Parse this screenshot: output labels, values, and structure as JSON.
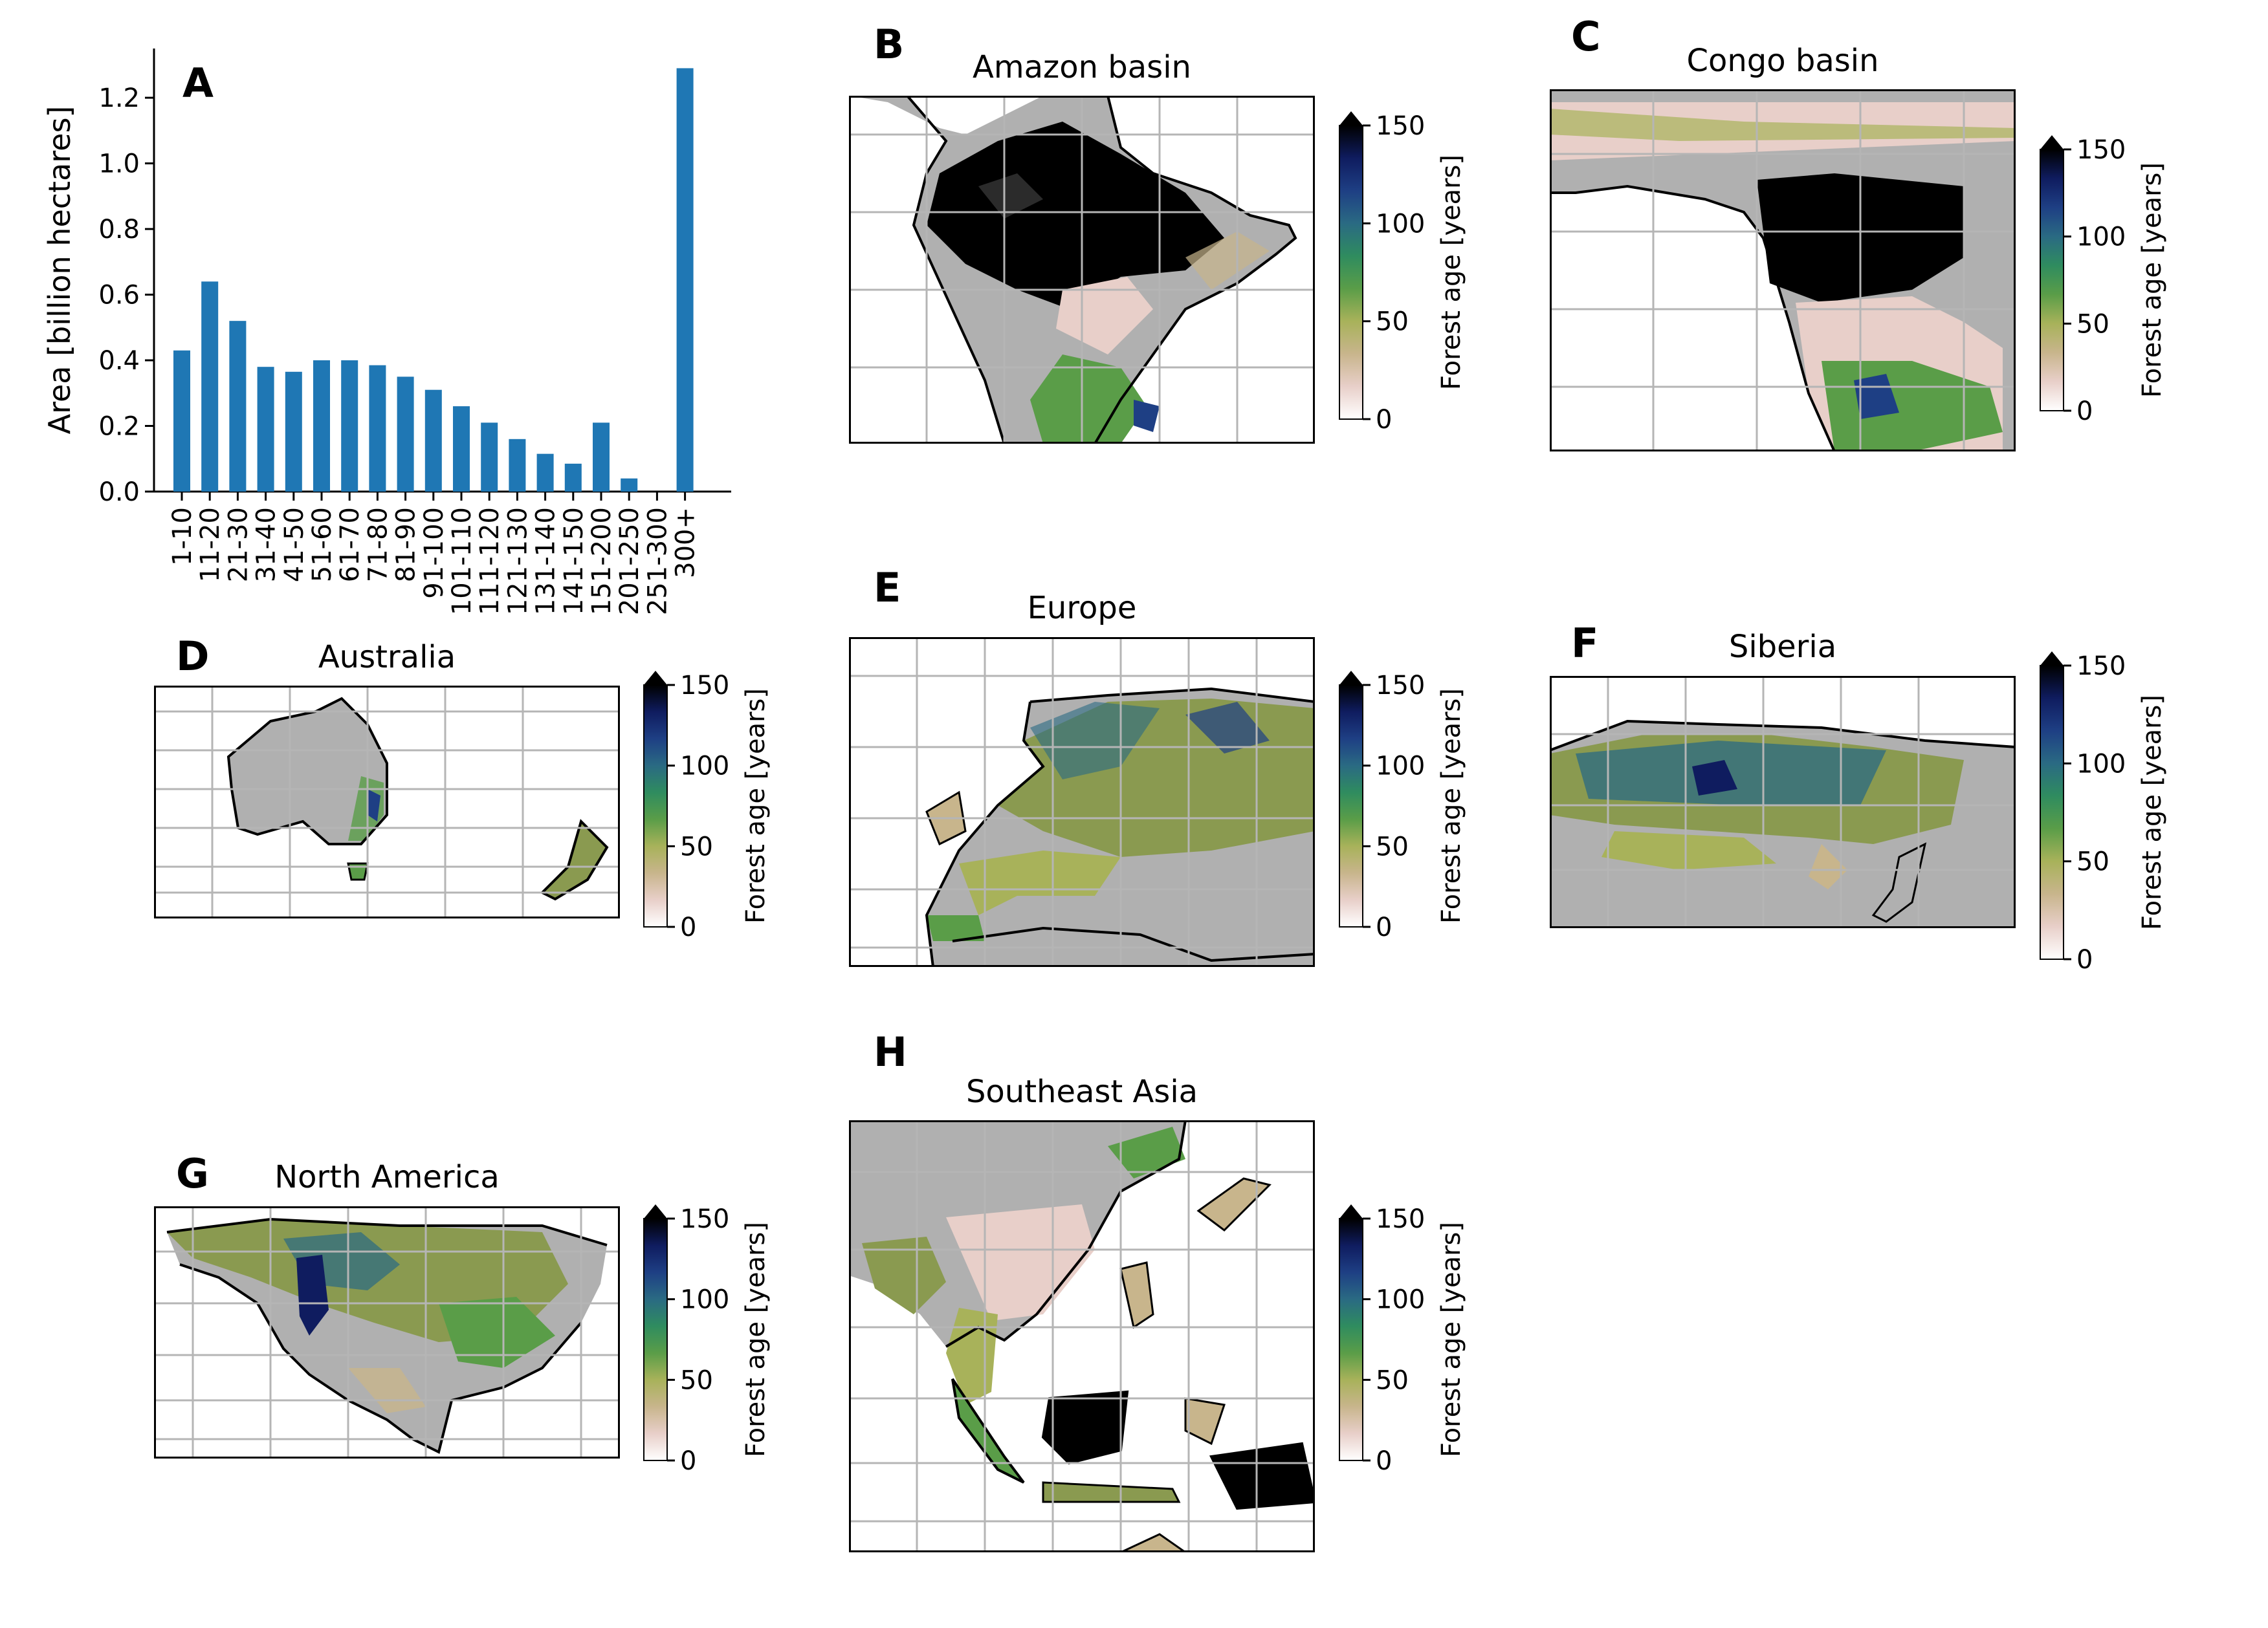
{
  "panels": {
    "A": {
      "letter": "A"
    },
    "B": {
      "letter": "B",
      "title": "Amazon basin"
    },
    "C": {
      "letter": "C",
      "title": "Congo basin"
    },
    "D": {
      "letter": "D",
      "title": "Australia"
    },
    "E": {
      "letter": "E",
      "title": "Europe"
    },
    "F": {
      "letter": "F",
      "title": "Siberia"
    },
    "G": {
      "letter": "G",
      "title": "North America"
    },
    "H": {
      "letter": "H",
      "title": "Southeast Asia"
    }
  },
  "colorbar": {
    "label": "Forest age [years]",
    "ticks": [
      "0",
      "50",
      "100",
      "150"
    ],
    "extend": "max",
    "colors": [
      "#ffffff",
      "#e8cfc9",
      "#c8b58c",
      "#a8b25a",
      "#5a9d48",
      "#2f8c5f",
      "#2a6a83",
      "#1e3f84",
      "#0f1c5f",
      "#000000"
    ]
  },
  "map_colors": {
    "no_data": "#b0b0b0",
    "old_forest": "#000000",
    "grid": "#b5b5b5"
  },
  "chart_data": {
    "type": "bar",
    "title": "",
    "xlabel": "",
    "ylabel": "Area [billion hectares]",
    "categories": [
      "1-10",
      "11-20",
      "21-30",
      "31-40",
      "41-50",
      "51-60",
      "61-70",
      "71-80",
      "81-90",
      "91-100",
      "101-110",
      "111-120",
      "121-130",
      "131-140",
      "141-150",
      "151-200",
      "201-250",
      "251-300",
      "300+"
    ],
    "values": [
      0.43,
      0.64,
      0.52,
      0.38,
      0.365,
      0.4,
      0.4,
      0.385,
      0.35,
      0.31,
      0.26,
      0.21,
      0.16,
      0.115,
      0.085,
      0.21,
      0.04,
      0.0,
      1.29
    ],
    "ylim": [
      0,
      1.35
    ],
    "yticks": [
      0.0,
      0.2,
      0.4,
      0.6,
      0.8,
      1.0,
      1.2
    ],
    "ytick_labels": [
      "0.0",
      "0.2",
      "0.4",
      "0.6",
      "0.8",
      "1.0",
      "1.2"
    ],
    "bar_color": "#1f77b4",
    "grid": false,
    "legend": "none"
  }
}
